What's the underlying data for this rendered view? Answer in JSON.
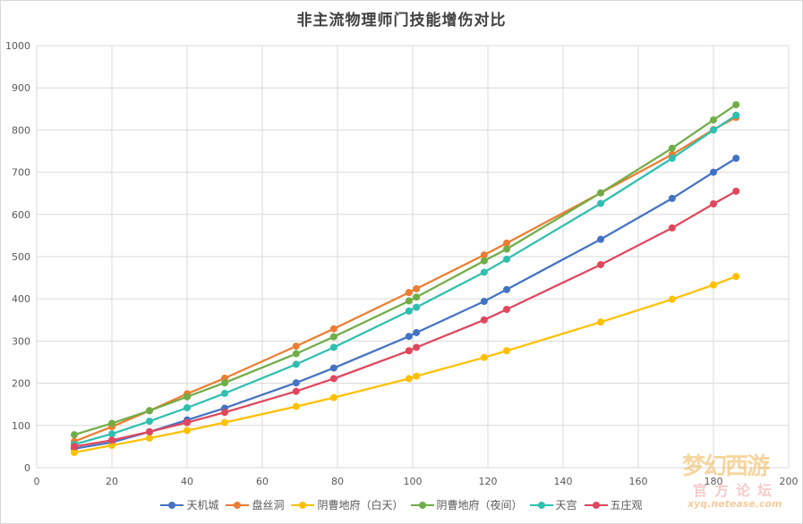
{
  "chart_data": {
    "type": "line",
    "title": "非主流物理师门技能增伤对比",
    "xlabel": "",
    "ylabel": "",
    "xlim": [
      0,
      200
    ],
    "ylim": [
      0,
      1000
    ],
    "x_ticks": [
      0,
      20,
      40,
      60,
      80,
      100,
      120,
      140,
      160,
      180,
      200
    ],
    "y_ticks": [
      0,
      100,
      200,
      300,
      400,
      500,
      600,
      700,
      800,
      900,
      1000
    ],
    "grid": true,
    "legend_position": "bottom",
    "x": [
      10,
      20,
      30,
      40,
      50,
      69,
      79,
      99,
      101,
      119,
      125,
      150,
      169,
      180,
      186
    ],
    "series": [
      {
        "name": "天机城",
        "color": "#4472c4",
        "values": [
          45,
          60,
          85,
          113,
          141,
          201,
          236,
          311,
          320,
          394,
          422,
          541,
          638,
          700,
          733
        ]
      },
      {
        "name": "盘丝洞",
        "color": "#ed7d31",
        "values": [
          62,
          97,
          135,
          175,
          212,
          288,
          329,
          415,
          424,
          504,
          532,
          651,
          742,
          801,
          830
        ]
      },
      {
        "name": "阴曹地府（白天）",
        "color": "#ffc000",
        "values": [
          36,
          53,
          70,
          88,
          107,
          145,
          166,
          211,
          217,
          261,
          277,
          345,
          399,
          433,
          453
        ]
      },
      {
        "name": "阴曹地府（夜间）",
        "color": "#70ad47",
        "values": [
          78,
          105,
          135,
          168,
          201,
          270,
          310,
          395,
          404,
          490,
          518,
          651,
          757,
          824,
          860
        ]
      },
      {
        "name": "天宫",
        "color": "#2fbfb0",
        "values": [
          55,
          80,
          110,
          142,
          176,
          245,
          285,
          371,
          380,
          463,
          494,
          626,
          733,
          800,
          835
        ]
      },
      {
        "name": "五庄观",
        "color": "#e0475d",
        "values": [
          50,
          65,
          85,
          107,
          131,
          181,
          211,
          277,
          285,
          350,
          375,
          481,
          568,
          625,
          655
        ]
      }
    ]
  },
  "watermark": {
    "main": "梦幻西游",
    "sub": "官方论坛",
    "url": "xyq.netease.com"
  }
}
